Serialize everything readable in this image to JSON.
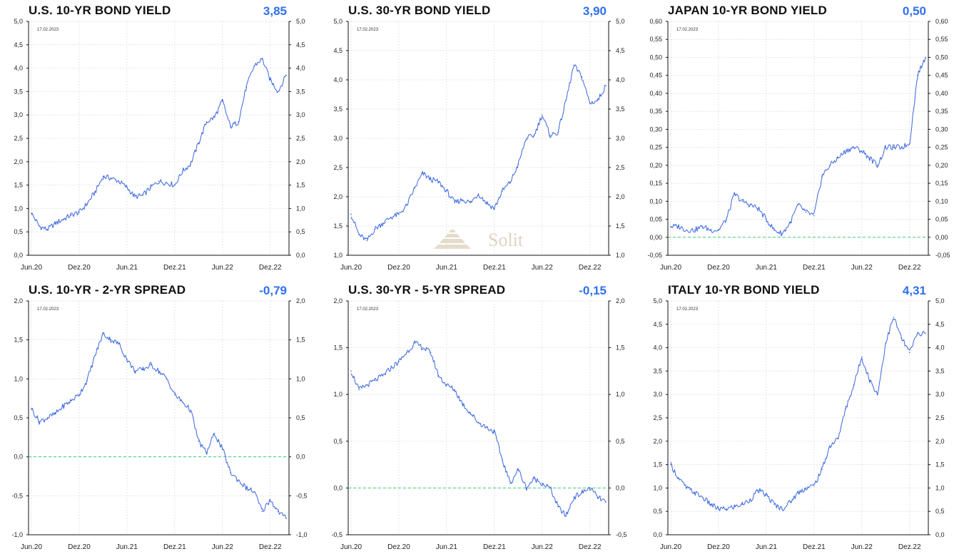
{
  "colors": {
    "line": "#3a66e0",
    "zero_line": "#39d07a",
    "axis": "#111111",
    "grid": "#e3e3e3",
    "value_text": "#2f6ff0"
  },
  "watermark": {
    "text": "Solit"
  },
  "x_tick_labels": [
    "Jun.20",
    "Dez.20",
    "Jun.21",
    "Dez.21",
    "Jun.22",
    "Dez.22"
  ],
  "panels": [
    {
      "title": "U.S. 10-YR BOND YIELD",
      "value": "3,85",
      "date": "17.02.2023"
    },
    {
      "title": "U.S. 30-YR BOND YIELD",
      "value": "3,90",
      "date": "17.02.2023"
    },
    {
      "title": "JAPAN 10-YR BOND YIELD",
      "value": "0,50",
      "date": "17.02.2023"
    },
    {
      "title": "U.S. 10-YR - 2-YR SPREAD",
      "value": "-0,79",
      "date": "17.02.2023"
    },
    {
      "title": "U.S. 30-YR - 5-YR SPREAD",
      "value": "-0,15",
      "date": "17.02.2023"
    },
    {
      "title": "ITALY 10-YR BOND YIELD",
      "value": "4,31",
      "date": "17.02.2023"
    }
  ],
  "chart_data": [
    {
      "type": "line",
      "title": "U.S. 10-YR BOND YIELD",
      "ylim": [
        0,
        5.0
      ],
      "y_ticks": [
        "0,0",
        "0,5",
        "1,0",
        "1,5",
        "2,0",
        "2,5",
        "3,0",
        "3,5",
        "4,0",
        "4,5",
        "5,0"
      ],
      "zero_line": false,
      "series": [
        {
          "x": [
            "2020-06",
            "2020-07",
            "2020-08",
            "2020-09",
            "2020-10",
            "2020-11",
            "2020-12",
            "2021-01",
            "2021-02",
            "2021-03",
            "2021-04",
            "2021-05",
            "2021-06",
            "2021-07",
            "2021-08",
            "2021-09",
            "2021-10",
            "2021-11",
            "2021-12",
            "2022-01",
            "2022-02",
            "2022-03",
            "2022-04",
            "2022-05",
            "2022-06",
            "2022-07",
            "2022-08",
            "2022-09",
            "2022-10",
            "2022-11",
            "2022-12",
            "2023-01",
            "2023-02"
          ],
          "values": [
            0.9,
            0.62,
            0.55,
            0.68,
            0.77,
            0.86,
            0.92,
            1.1,
            1.35,
            1.68,
            1.65,
            1.58,
            1.45,
            1.25,
            1.28,
            1.45,
            1.58,
            1.55,
            1.5,
            1.8,
            1.95,
            2.4,
            2.85,
            2.95,
            3.3,
            2.75,
            2.85,
            3.6,
            4.05,
            4.2,
            3.75,
            3.5,
            3.85
          ]
        }
      ]
    },
    {
      "type": "line",
      "title": "U.S. 30-YR BOND YIELD",
      "ylim": [
        1.0,
        5.0
      ],
      "y_ticks": [
        "1,0",
        "1,5",
        "2,0",
        "2,5",
        "3,0",
        "3,5",
        "4,0",
        "4,5",
        "5,0"
      ],
      "zero_line": false,
      "series": [
        {
          "x": [
            "2020-06",
            "2020-07",
            "2020-08",
            "2020-09",
            "2020-10",
            "2020-11",
            "2020-12",
            "2021-01",
            "2021-02",
            "2021-03",
            "2021-04",
            "2021-05",
            "2021-06",
            "2021-07",
            "2021-08",
            "2021-09",
            "2021-10",
            "2021-11",
            "2021-12",
            "2022-01",
            "2022-02",
            "2022-03",
            "2022-04",
            "2022-05",
            "2022-06",
            "2022-07",
            "2022-08",
            "2022-09",
            "2022-10",
            "2022-11",
            "2022-12",
            "2023-01",
            "2023-02"
          ],
          "values": [
            1.7,
            1.35,
            1.25,
            1.45,
            1.55,
            1.65,
            1.7,
            1.85,
            2.15,
            2.4,
            2.3,
            2.25,
            2.1,
            1.9,
            1.95,
            1.9,
            2.05,
            1.9,
            1.8,
            2.1,
            2.25,
            2.55,
            3.0,
            3.05,
            3.4,
            3.05,
            3.1,
            3.65,
            4.25,
            4.05,
            3.6,
            3.65,
            3.9
          ]
        }
      ]
    },
    {
      "type": "line",
      "title": "JAPAN 10-YR BOND YIELD",
      "ylim": [
        -0.05,
        0.6
      ],
      "y_ticks": [
        "-0,05",
        "0,00",
        "0,05",
        "0,10",
        "0,15",
        "0,20",
        "0,25",
        "0,30",
        "0,35",
        "0,40",
        "0,45",
        "0,50",
        "0,55",
        "0,60"
      ],
      "zero_line": true,
      "series": [
        {
          "x": [
            "2020-06",
            "2020-07",
            "2020-08",
            "2020-09",
            "2020-10",
            "2020-11",
            "2020-12",
            "2021-01",
            "2021-02",
            "2021-03",
            "2021-04",
            "2021-05",
            "2021-06",
            "2021-07",
            "2021-08",
            "2021-09",
            "2021-10",
            "2021-11",
            "2021-12",
            "2022-01",
            "2022-02",
            "2022-03",
            "2022-04",
            "2022-05",
            "2022-06",
            "2022-07",
            "2022-08",
            "2022-09",
            "2022-10",
            "2022-11",
            "2022-12",
            "2023-01",
            "2023-02"
          ],
          "values": [
            0.03,
            0.03,
            0.02,
            0.02,
            0.03,
            0.02,
            0.02,
            0.05,
            0.12,
            0.1,
            0.09,
            0.08,
            0.05,
            0.02,
            0.01,
            0.04,
            0.09,
            0.07,
            0.06,
            0.17,
            0.2,
            0.22,
            0.24,
            0.25,
            0.24,
            0.22,
            0.2,
            0.25,
            0.25,
            0.25,
            0.26,
            0.45,
            0.5
          ]
        }
      ]
    },
    {
      "type": "line",
      "title": "U.S. 10-YR - 2-YR SPREAD",
      "ylim": [
        -1.0,
        2.0
      ],
      "y_ticks": [
        "-1,0",
        "-0,5",
        "0,0",
        "0,5",
        "1,0",
        "1,5",
        "2,0"
      ],
      "zero_line": true,
      "series": [
        {
          "x": [
            "2020-06",
            "2020-07",
            "2020-08",
            "2020-09",
            "2020-10",
            "2020-11",
            "2020-12",
            "2021-01",
            "2021-02",
            "2021-03",
            "2021-04",
            "2021-05",
            "2021-06",
            "2021-07",
            "2021-08",
            "2021-09",
            "2021-10",
            "2021-11",
            "2021-12",
            "2022-01",
            "2022-02",
            "2022-03",
            "2022-04",
            "2022-05",
            "2022-06",
            "2022-07",
            "2022-08",
            "2022-09",
            "2022-10",
            "2022-11",
            "2022-12",
            "2023-01",
            "2023-02"
          ],
          "values": [
            0.62,
            0.45,
            0.5,
            0.55,
            0.65,
            0.72,
            0.8,
            0.98,
            1.3,
            1.58,
            1.5,
            1.45,
            1.25,
            1.1,
            1.12,
            1.18,
            1.1,
            1.0,
            0.8,
            0.7,
            0.6,
            0.2,
            0.05,
            0.3,
            0.1,
            -0.2,
            -0.3,
            -0.4,
            -0.45,
            -0.7,
            -0.55,
            -0.7,
            -0.79
          ]
        }
      ]
    },
    {
      "type": "line",
      "title": "U.S. 30-YR - 5-YR SPREAD",
      "ylim": [
        -0.5,
        2.0
      ],
      "y_ticks": [
        "-0,5",
        "0,0",
        "0,5",
        "1,0",
        "1,5",
        "2,0"
      ],
      "zero_line": true,
      "series": [
        {
          "x": [
            "2020-06",
            "2020-07",
            "2020-08",
            "2020-09",
            "2020-10",
            "2020-11",
            "2020-12",
            "2021-01",
            "2021-02",
            "2021-03",
            "2021-04",
            "2021-05",
            "2021-06",
            "2021-07",
            "2021-08",
            "2021-09",
            "2021-10",
            "2021-11",
            "2021-12",
            "2022-01",
            "2022-02",
            "2022-03",
            "2022-04",
            "2022-05",
            "2022-06",
            "2022-07",
            "2022-08",
            "2022-09",
            "2022-10",
            "2022-11",
            "2022-12",
            "2023-01",
            "2023-02"
          ],
          "values": [
            1.25,
            1.05,
            1.1,
            1.15,
            1.2,
            1.28,
            1.35,
            1.45,
            1.55,
            1.5,
            1.45,
            1.2,
            1.1,
            1.05,
            0.9,
            0.8,
            0.7,
            0.65,
            0.6,
            0.3,
            0.05,
            0.2,
            0.0,
            0.1,
            0.05,
            0.0,
            -0.2,
            -0.3,
            -0.1,
            -0.05,
            0.0,
            -0.1,
            -0.15
          ]
        }
      ]
    },
    {
      "type": "line",
      "title": "ITALY 10-YR BOND YIELD",
      "ylim": [
        0,
        5.0
      ],
      "y_ticks": [
        "0,0",
        "0,5",
        "1,0",
        "1,5",
        "2,0",
        "2,5",
        "3,0",
        "3,5",
        "4,0",
        "4,5",
        "5,0"
      ],
      "zero_line": false,
      "series": [
        {
          "x": [
            "2020-06",
            "2020-07",
            "2020-08",
            "2020-09",
            "2020-10",
            "2020-11",
            "2020-12",
            "2021-01",
            "2021-02",
            "2021-03",
            "2021-04",
            "2021-05",
            "2021-06",
            "2021-07",
            "2021-08",
            "2021-09",
            "2021-10",
            "2021-11",
            "2021-12",
            "2022-01",
            "2022-02",
            "2022-03",
            "2022-04",
            "2022-05",
            "2022-06",
            "2022-07",
            "2022-08",
            "2022-09",
            "2022-10",
            "2022-11",
            "2022-12",
            "2023-01",
            "2023-02"
          ],
          "values": [
            1.5,
            1.2,
            1.0,
            0.9,
            0.8,
            0.65,
            0.55,
            0.55,
            0.6,
            0.65,
            0.75,
            0.95,
            0.85,
            0.65,
            0.55,
            0.7,
            0.9,
            1.0,
            1.05,
            1.4,
            1.9,
            2.05,
            2.7,
            3.2,
            3.8,
            3.3,
            3.0,
            4.1,
            4.65,
            4.2,
            3.9,
            4.3,
            4.31
          ]
        }
      ]
    }
  ]
}
